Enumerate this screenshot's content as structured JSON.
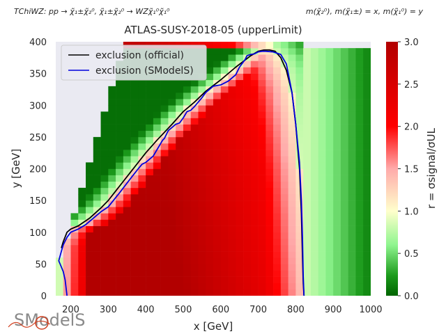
{
  "header": {
    "process": "TChiWZ: pp → χ̃₁±χ̃₂⁰, χ̃₁±χ̃₂⁰ → WZχ̃₁⁰χ̃₁⁰",
    "masses": "m(χ̃₂⁰), m(χ̃₁±) = x, m(χ̃₁⁰) = y"
  },
  "logo": {
    "text": "SModelS"
  },
  "colors": {
    "axes_bg": "#eaeaf2",
    "official": "#000000",
    "smodels": "#0000dd",
    "scale": [
      "#006400",
      "#ffffcc",
      "#ff0000",
      "#b20000"
    ]
  },
  "chart_data": {
    "type": "heatmap",
    "title": "ATLAS-SUSY-2018-05 (upperLimit)",
    "xlabel": "x [GeV]",
    "ylabel": "y [GeV]",
    "xlim": [
      160,
      1000
    ],
    "ylim": [
      0,
      400
    ],
    "xticks": [
      200,
      300,
      400,
      500,
      600,
      700,
      800,
      900,
      1000
    ],
    "yticks": [
      0,
      50,
      100,
      150,
      200,
      250,
      300,
      350,
      400
    ],
    "grid": false,
    "colorbar": {
      "label": "r = σsignal/σUL",
      "range": [
        0,
        3
      ],
      "ticks": [
        "0.0",
        "0.5",
        "1.0",
        "1.5",
        "2.0",
        "2.5",
        "3.0"
      ]
    },
    "legend": {
      "placement": "top-left",
      "entries": [
        {
          "name": "exclusion (official)",
          "color": "#000000"
        },
        {
          "name": "exclusion (SModelS)",
          "color": "#0000dd"
        }
      ]
    },
    "grid_cells": {
      "dx": 20,
      "dy": 10,
      "x_start": 160,
      "x_end": 1000
    },
    "series": [
      {
        "name": "exclusion (official)",
        "x": [
          175,
          180,
          190,
          200,
          220,
          250,
          280,
          300,
          320,
          340,
          360,
          380,
          400,
          430,
          470,
          500,
          530,
          560,
          600,
          640,
          680,
          700,
          715,
          730,
          745,
          760,
          775,
          790,
          800,
          810,
          815,
          818,
          820,
          822
        ],
        "y": [
          75,
          85,
          100,
          105,
          110,
          122,
          138,
          150,
          165,
          180,
          195,
          210,
          225,
          245,
          270,
          290,
          305,
          322,
          340,
          360,
          378,
          385,
          387,
          387,
          385,
          375,
          355,
          320,
          270,
          200,
          130,
          60,
          20,
          0
        ]
      },
      {
        "name": "exclusion (SModelS)",
        "x": [
          190,
          185,
          180,
          173,
          168,
          175,
          180,
          190,
          200,
          220,
          240,
          260,
          280,
          300,
          330,
          360,
          380,
          390,
          400,
          410,
          420,
          430,
          440,
          445,
          450,
          460,
          470,
          480,
          490,
          495,
          500,
          510,
          520,
          530,
          540,
          550,
          560,
          570,
          580,
          600,
          620,
          640,
          650,
          660,
          665,
          670,
          680,
          690,
          700,
          710,
          720,
          740,
          760,
          775,
          790,
          800,
          810,
          815,
          818,
          820,
          822
        ],
        "y": [
          0,
          25,
          38,
          48,
          55,
          70,
          80,
          92,
          100,
          105,
          112,
          122,
          132,
          140,
          162,
          185,
          200,
          207,
          210,
          215,
          220,
          230,
          240,
          245,
          248,
          260,
          265,
          270,
          272,
          276,
          280,
          290,
          292,
          298,
          305,
          312,
          320,
          325,
          330,
          332,
          338,
          348,
          360,
          368,
          372,
          378,
          380,
          381,
          384,
          385,
          385,
          384,
          380,
          365,
          320,
          270,
          210,
          150,
          90,
          30,
          0
        ]
      }
    ]
  }
}
